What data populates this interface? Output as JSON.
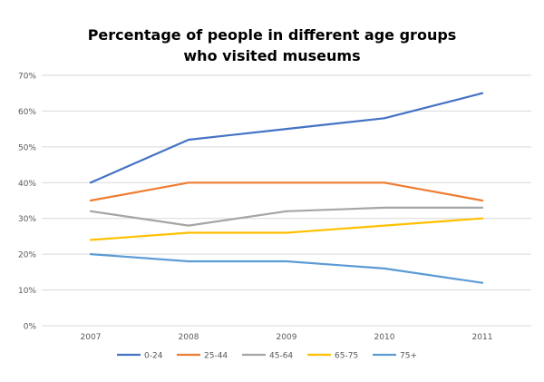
{
  "chart_data": {
    "type": "line",
    "title_lines": [
      "Percentage of people in different age groups",
      "who visited museums"
    ],
    "categories": [
      "2007",
      "2008",
      "2009",
      "2010",
      "2011"
    ],
    "y_ticks": [
      "0%",
      "10%",
      "20%",
      "30%",
      "40%",
      "50%",
      "60%",
      "70%"
    ],
    "ylim": [
      0,
      70
    ],
    "y_unit": "%",
    "grid": "horizontal",
    "legend_position": "bottom",
    "series": [
      {
        "name": "0-24",
        "color": "#4472C4",
        "values": [
          40,
          52,
          55,
          58,
          65
        ]
      },
      {
        "name": "25-44",
        "color": "#ED7D31",
        "values": [
          35,
          40,
          40,
          40,
          35
        ]
      },
      {
        "name": "45-64",
        "color": "#A5A5A5",
        "values": [
          32,
          28,
          32,
          33,
          33
        ]
      },
      {
        "name": "65-75",
        "color": "#FFC000",
        "values": [
          24,
          26,
          26,
          28,
          30
        ]
      },
      {
        "name": "75+",
        "color": "#5B9BD5",
        "values": [
          20,
          18,
          18,
          16,
          12
        ]
      }
    ]
  }
}
